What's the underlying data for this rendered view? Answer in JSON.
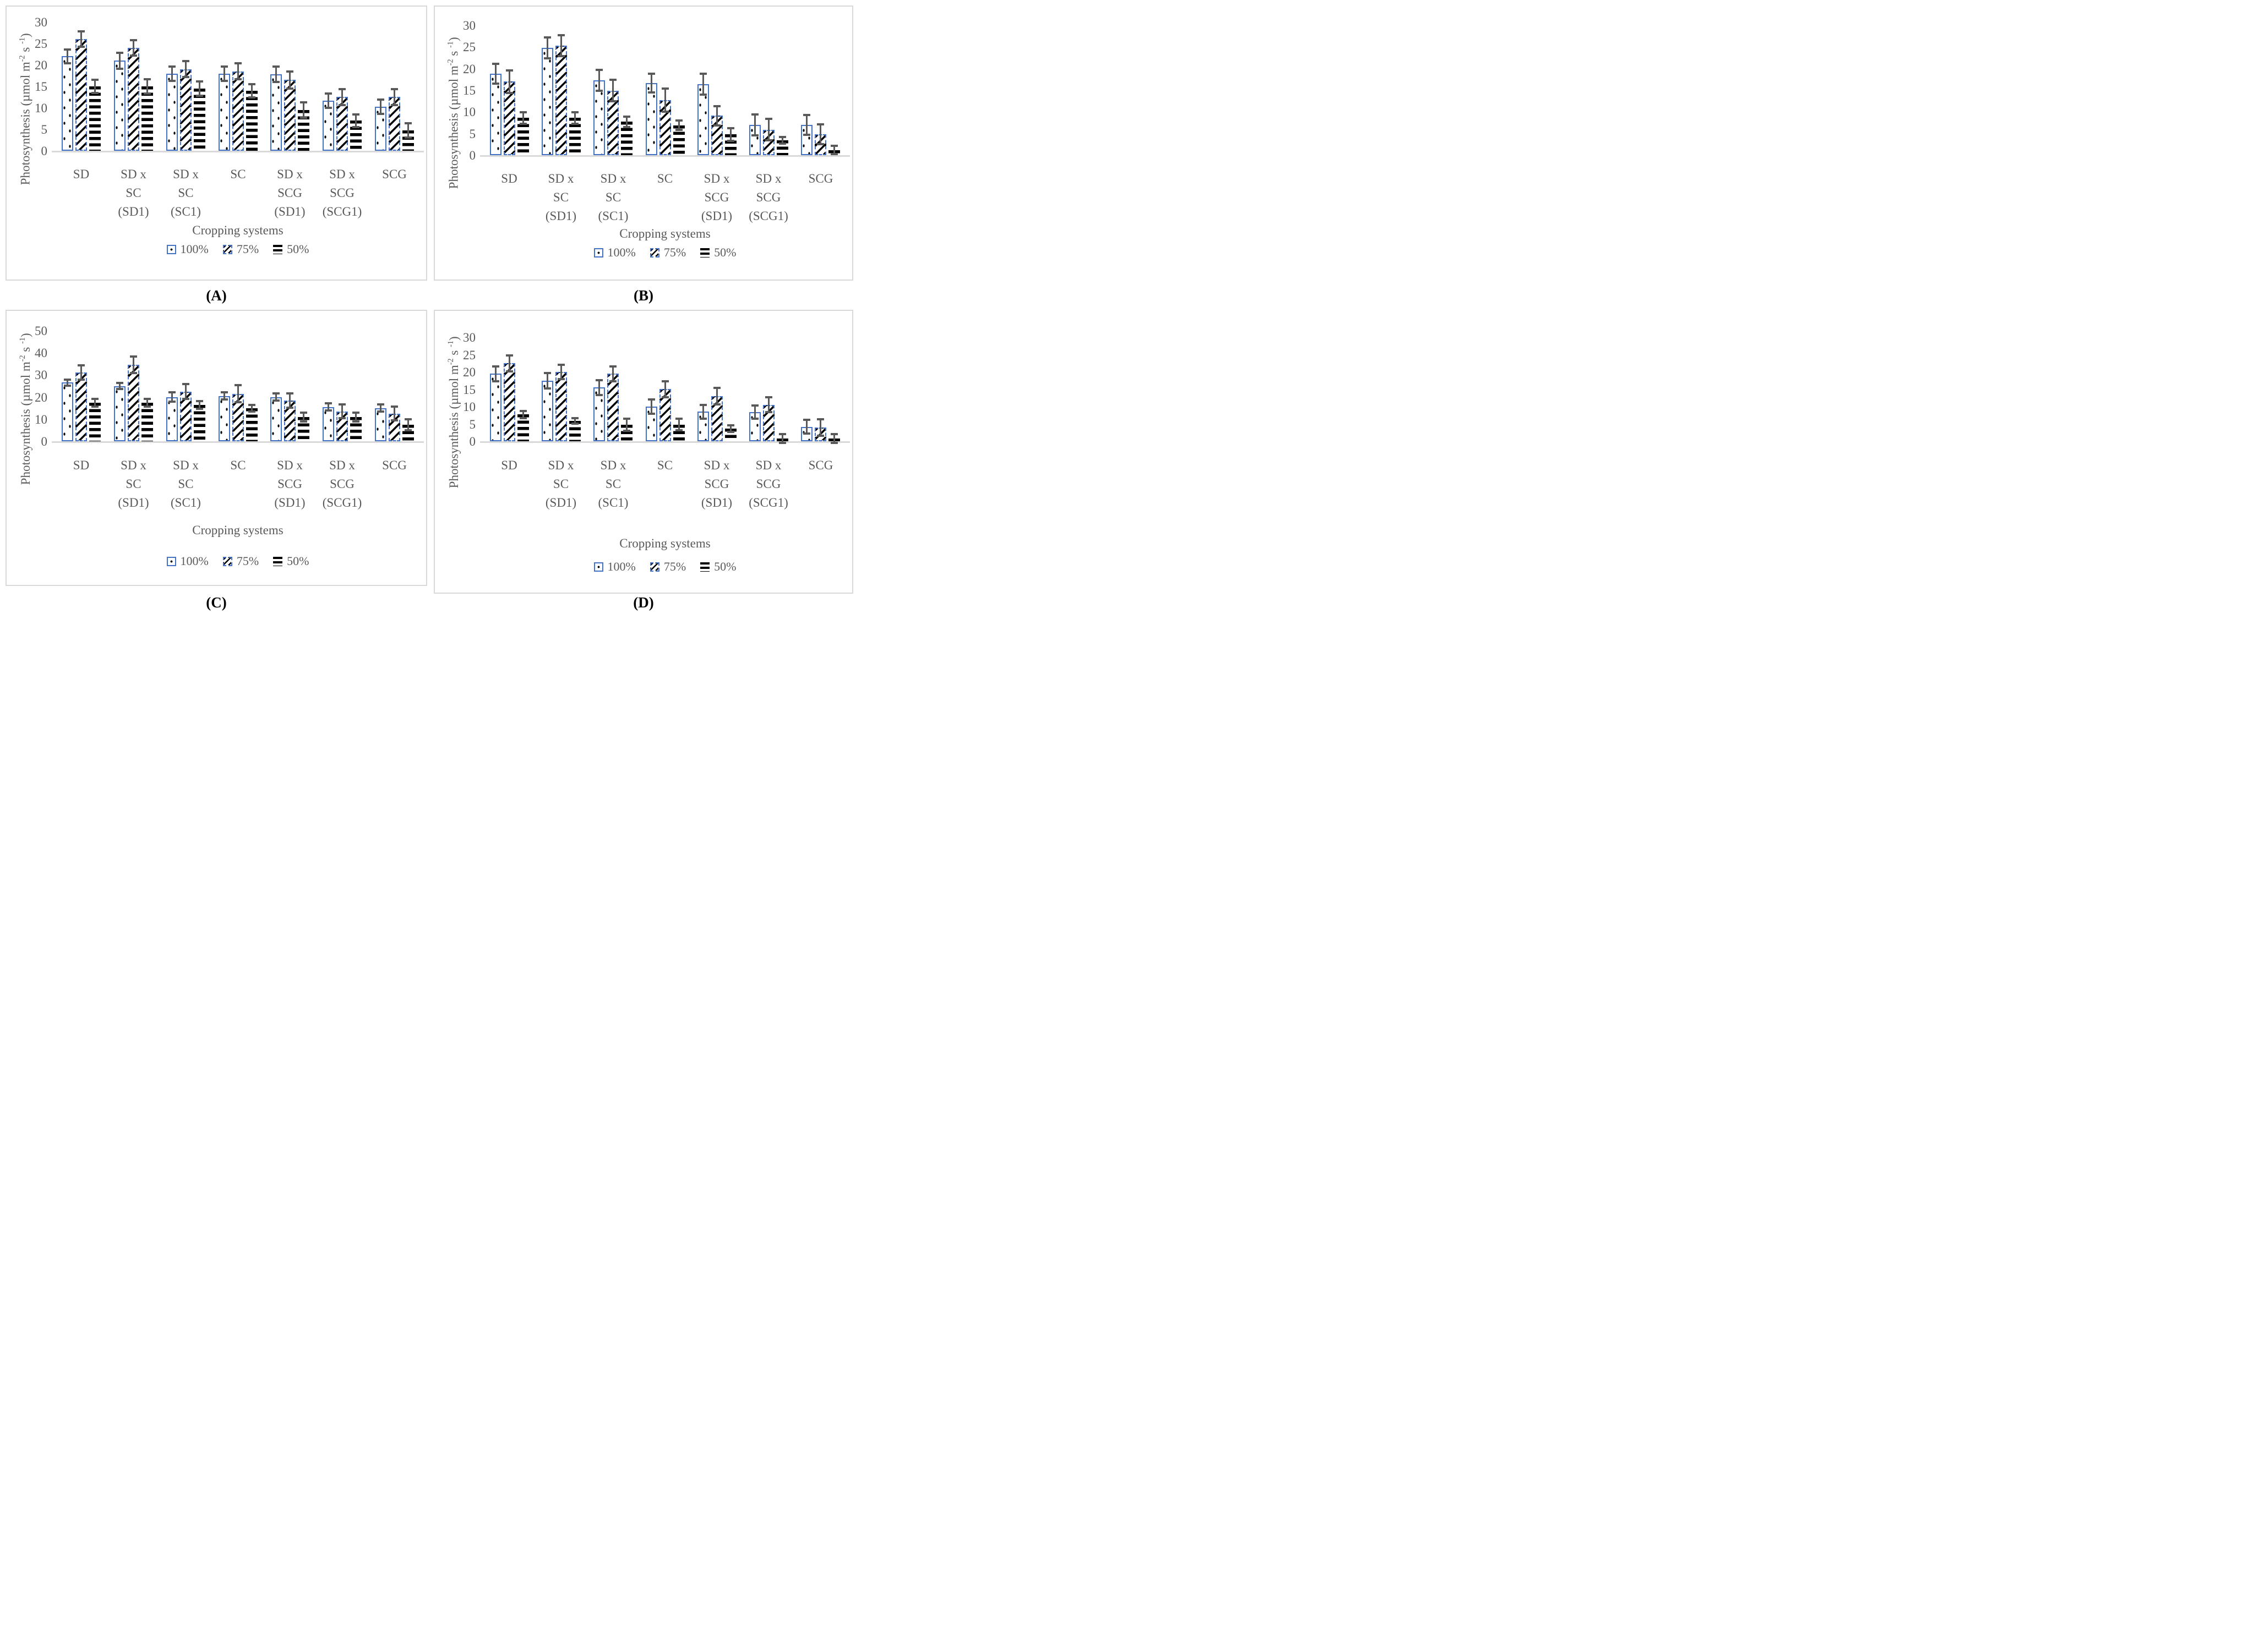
{
  "figure": {
    "xlabel": "Cropping systems",
    "ylabel_parts": [
      {
        "t": "Photosynthesis (µmol m"
      },
      {
        "t": "-2",
        "sup": true
      },
      {
        "t": " s "
      },
      {
        "t": "-1",
        "sup": true
      },
      {
        "t": ")"
      }
    ],
    "legend": [
      {
        "label": "100%",
        "pattern": "dots"
      },
      {
        "label": "75%",
        "pattern": "hatch"
      },
      {
        "label": "50%",
        "pattern": "hbars"
      }
    ],
    "colors": {
      "bar_outline_blue": "#4472C4",
      "error_bar_gray": "#595959",
      "axis_text_gray": "#595959",
      "baseline_gray": "#D9D9D9",
      "panel_border_gray": "#D9D9D9",
      "pattern_black": "#000000"
    }
  },
  "chart_data": [
    {
      "panel": "A",
      "letter": "(A)",
      "type": "bar",
      "title": "",
      "xlabel": "Cropping systems",
      "ylabel": "Photosynthesis (µmol m-2 s-1)",
      "ylim": [
        0,
        30
      ],
      "yticks": [
        0,
        5,
        10,
        15,
        20,
        25,
        30
      ],
      "grid": false,
      "legend_position": "bottom",
      "categories": [
        "SD",
        "SD x SC (SD1)",
        "SD x SC (SC1)",
        "SC",
        "SD x SCG (SD1)",
        "SD x SCG (SCG1)",
        "SCG"
      ],
      "category_lines": [
        [
          "SD"
        ],
        [
          "SD x",
          "SC",
          "(SD1)"
        ],
        [
          "SD x",
          "SC",
          "(SC1)"
        ],
        [
          "SC"
        ],
        [
          "SD x",
          "SCG",
          "(SD1)"
        ],
        [
          "SD x",
          "SCG",
          "(SCG1)"
        ],
        [
          "SCG"
        ]
      ],
      "series": [
        {
          "name": "100%",
          "pattern": "dots",
          "values": [
            22.0,
            21.0,
            18.0,
            18.0,
            17.8,
            11.7,
            10.3
          ],
          "errors": [
            1.7,
            2.0,
            1.8,
            1.8,
            1.9,
            1.8,
            1.8
          ]
        },
        {
          "name": "75%",
          "pattern": "hatch",
          "values": [
            26.0,
            24.0,
            19.0,
            18.5,
            16.5,
            12.5,
            12.5
          ],
          "errors": [
            1.9,
            1.9,
            2.0,
            2.0,
            2.1,
            2.0,
            2.0
          ]
        },
        {
          "name": "50%",
          "pattern": "hbars",
          "values": [
            15.0,
            15.0,
            14.5,
            14.0,
            9.5,
            7.0,
            4.7
          ],
          "errors": [
            1.7,
            1.8,
            1.8,
            1.7,
            1.9,
            1.6,
            1.8
          ]
        }
      ]
    },
    {
      "panel": "B",
      "letter": "(B)",
      "type": "bar",
      "title": "",
      "xlabel": "Cropping systems",
      "ylabel": "Photosynthesis (µmol m-2 s-1)",
      "ylim": [
        0,
        30
      ],
      "yticks": [
        0,
        5,
        10,
        15,
        20,
        25,
        30
      ],
      "grid": false,
      "legend_position": "bottom",
      "categories": [
        "SD",
        "SD x SC (SD1)",
        "SD x SC (SC1)",
        "SC",
        "SD x SCG (SD1)",
        "SD x SCG (SCG1)",
        "SCG"
      ],
      "category_lines": [
        [
          "SD"
        ],
        [
          "SD x",
          "SC",
          "(SD1)"
        ],
        [
          "SD x",
          "SC",
          "(SC1)"
        ],
        [
          "SC"
        ],
        [
          "SD x",
          "SCG",
          "(SD1)"
        ],
        [
          "SD x",
          "SCG",
          "(SCG1)"
        ],
        [
          "SCG"
        ]
      ],
      "series": [
        {
          "name": "100%",
          "pattern": "dots",
          "values": [
            18.8,
            24.8,
            17.3,
            16.7,
            16.4,
            7.0,
            7.0
          ],
          "errors": [
            2.4,
            2.5,
            2.5,
            2.3,
            2.6,
            2.5,
            2.4
          ]
        },
        {
          "name": "75%",
          "pattern": "hatch",
          "values": [
            17.0,
            25.3,
            14.9,
            12.7,
            9.1,
            5.9,
            4.8
          ],
          "errors": [
            2.7,
            2.6,
            2.6,
            2.8,
            2.3,
            2.6,
            2.4
          ]
        },
        {
          "name": "50%",
          "pattern": "hbars",
          "values": [
            8.6,
            8.6,
            7.7,
            6.9,
            4.8,
            3.4,
            1.2
          ],
          "errors": [
            1.5,
            1.5,
            1.3,
            1.2,
            1.6,
            0.9,
            1.1
          ]
        }
      ]
    },
    {
      "panel": "C",
      "letter": "(C)",
      "type": "bar",
      "title": "",
      "xlabel": "Cropping systems",
      "ylabel": "Photosynthesis (µmol m-2 s-1)",
      "ylim": [
        0,
        50
      ],
      "yticks": [
        0,
        10,
        20,
        30,
        40,
        50
      ],
      "grid": false,
      "legend_position": "bottom",
      "categories": [
        "SD",
        "SD x SC (SD1)",
        "SD x SC (SC1)",
        "SC",
        "SD x SCG (SD1)",
        "SD x SCG (SCG1)",
        "SCG"
      ],
      "category_lines": [
        [
          "SD"
        ],
        [
          "SD x",
          "SC",
          "(SD1)"
        ],
        [
          "SD x",
          "SC",
          "(SC1)"
        ],
        [
          "SC"
        ],
        [
          "SD x",
          "SCG",
          "(SD1)"
        ],
        [
          "SD x",
          "SCG",
          "(SCG1)"
        ],
        [
          "SCG"
        ]
      ],
      "series": [
        {
          "name": "100%",
          "pattern": "dots",
          "values": [
            26.5,
            25.0,
            20.0,
            20.5,
            20.0,
            15.5,
            15.0
          ],
          "errors": [
            1.5,
            1.7,
            2.3,
            1.8,
            1.9,
            1.9,
            1.9
          ]
        },
        {
          "name": "75%",
          "pattern": "hatch",
          "values": [
            31.0,
            34.5,
            22.5,
            21.5,
            18.5,
            13.5,
            12.5
          ],
          "errors": [
            3.5,
            4.0,
            3.5,
            4.0,
            3.5,
            3.4,
            3.3
          ]
        },
        {
          "name": "50%",
          "pattern": "hbars",
          "values": [
            17.5,
            17.5,
            16.5,
            15.0,
            11.0,
            11.0,
            7.5
          ],
          "errors": [
            2.0,
            2.0,
            2.0,
            1.7,
            2.3,
            2.2,
            2.8
          ]
        }
      ]
    },
    {
      "panel": "D",
      "letter": "(D)",
      "type": "bar",
      "title": "",
      "xlabel": "Cropping systems",
      "ylabel": "Photosynthesis (µmol m-2 s-1)",
      "ylim": [
        0,
        30
      ],
      "yticks": [
        0,
        5,
        10,
        15,
        20,
        25,
        30
      ],
      "grid": false,
      "legend_position": "bottom",
      "categories": [
        "SD",
        "SD x SC (SD1)",
        "SD x SC (SC1)",
        "SC",
        "SD x SCG (SD1)",
        "SD x SCG (SCG1)",
        "SCG"
      ],
      "category_lines": [
        [
          "SD"
        ],
        [
          "SD x",
          "SC",
          "(SD1)"
        ],
        [
          "SD x",
          "SC",
          "(SC1)"
        ],
        [
          "SC"
        ],
        [
          "SD x",
          "SCG",
          "(SD1)"
        ],
        [
          "SD x",
          "SCG",
          "(SCG1)"
        ],
        [
          "SCG"
        ]
      ],
      "series": [
        {
          "name": "100%",
          "pattern": "dots",
          "values": [
            19.5,
            17.5,
            15.5,
            10.0,
            8.5,
            8.4,
            4.2
          ],
          "errors": [
            2.3,
            2.4,
            2.3,
            2.2,
            2.2,
            2.0,
            2.1
          ]
        },
        {
          "name": "75%",
          "pattern": "hatch",
          "values": [
            22.5,
            20.0,
            19.5,
            15.0,
            13.0,
            10.5,
            4.0
          ],
          "errors": [
            2.5,
            2.3,
            2.3,
            2.4,
            2.5,
            2.3,
            2.5
          ]
        },
        {
          "name": "50%",
          "pattern": "hbars",
          "values": [
            7.7,
            5.9,
            4.8,
            4.8,
            3.7,
            0.8,
            0.8
          ],
          "errors": [
            1.2,
            1.0,
            1.9,
            1.8,
            1.1,
            1.5,
            1.4
          ]
        }
      ]
    }
  ]
}
